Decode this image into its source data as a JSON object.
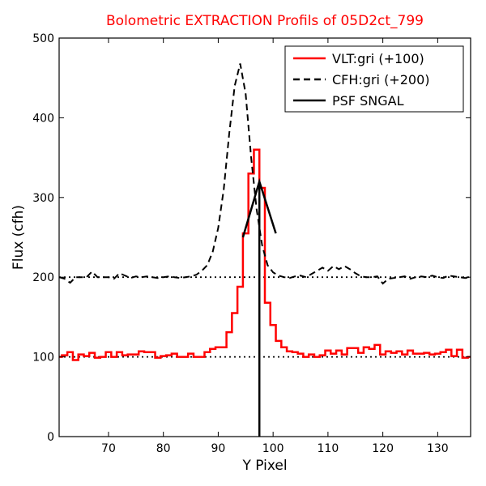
{
  "chart_data": {
    "type": "line",
    "title": "Bolometric EXTRACTION Profils of 05D2ct_799",
    "title_color": "#ff0000",
    "xlabel": "Y Pixel",
    "ylabel": "Flux (cfh)",
    "xlim": [
      61,
      136
    ],
    "ylim": [
      0,
      500
    ],
    "x_ticks": [
      70,
      80,
      90,
      100,
      110,
      120,
      130
    ],
    "y_ticks": [
      0,
      100,
      200,
      300,
      400,
      500
    ],
    "grid": false,
    "legend_position": "top-right",
    "series": [
      {
        "name": "VLT:gri (+100)",
        "style": "steps",
        "color": "#ff0000",
        "x": [
          61,
          62,
          63,
          64,
          65,
          66,
          67,
          68,
          69,
          70,
          71,
          72,
          73,
          74,
          75,
          76,
          77,
          78,
          79,
          80,
          81,
          82,
          83,
          84,
          85,
          86,
          87,
          88,
          89,
          90,
          91,
          92,
          93,
          94,
          95,
          96,
          97,
          98,
          99,
          100,
          101,
          102,
          103,
          104,
          105,
          106,
          107,
          108,
          109,
          110,
          111,
          112,
          113,
          114,
          115,
          116,
          117,
          118,
          119,
          120,
          121,
          122,
          123,
          124,
          125,
          126,
          127,
          128,
          129,
          130,
          131,
          132,
          133,
          134,
          135,
          136
        ],
        "y": [
          100,
          102,
          106,
          96,
          103,
          101,
          105,
          99,
          100,
          106,
          100,
          106,
          102,
          103,
          103,
          107,
          106,
          106,
          99,
          101,
          102,
          104,
          100,
          100,
          104,
          100,
          100,
          106,
          110,
          112,
          112,
          131,
          155,
          188,
          255,
          330,
          360,
          312,
          168,
          140,
          120,
          112,
          107,
          106,
          104,
          100,
          103,
          100,
          102,
          108,
          104,
          108,
          103,
          111,
          111,
          105,
          112,
          110,
          115,
          103,
          107,
          105,
          107,
          103,
          108,
          104,
          104,
          105,
          103,
          104,
          106,
          109,
          101,
          109,
          99,
          100
        ]
      },
      {
        "name": "CFH:gri (+200)",
        "style": "dashed",
        "color": "#000000",
        "x": [
          61,
          62,
          63,
          64,
          65,
          66,
          67,
          68,
          69,
          70,
          71,
          72,
          73,
          74,
          75,
          76,
          77,
          78,
          79,
          80,
          81,
          82,
          83,
          84,
          85,
          86,
          87,
          88,
          89,
          90,
          91,
          92,
          93,
          94,
          95,
          96,
          97,
          98,
          99,
          100,
          101,
          102,
          103,
          104,
          105,
          106,
          107,
          108,
          109,
          110,
          111,
          112,
          113,
          114,
          115,
          116,
          117,
          118,
          119,
          120,
          121,
          122,
          123,
          124,
          125,
          126,
          127,
          128,
          129,
          130,
          131,
          132,
          133,
          134,
          135,
          136
        ],
        "y": [
          200,
          198,
          193,
          200,
          200,
          200,
          207,
          200,
          200,
          200,
          198,
          205,
          202,
          199,
          201,
          200,
          201,
          200,
          199,
          200,
          201,
          200,
          199,
          200,
          201,
          203,
          208,
          215,
          232,
          262,
          310,
          380,
          440,
          468,
          430,
          350,
          285,
          240,
          215,
          206,
          202,
          200,
          199,
          201,
          202,
          200,
          204,
          208,
          212,
          208,
          214,
          210,
          214,
          210,
          205,
          201,
          200,
          200,
          201,
          192,
          198,
          199,
          200,
          201,
          198,
          200,
          201,
          200,
          202,
          200,
          199,
          202,
          201,
          200,
          199,
          200
        ]
      },
      {
        "name": "PSF SNGAL",
        "style": "solid",
        "color": "#000000",
        "x": [
          94.5,
          97.5,
          100.5
        ],
        "y": [
          250,
          320,
          255
        ],
        "vertical_line_x": 97.5
      }
    ],
    "reference_lines": [
      {
        "y": 100,
        "style": "dotted",
        "color": "#000000"
      },
      {
        "y": 200,
        "style": "dotted",
        "color": "#000000"
      }
    ]
  }
}
